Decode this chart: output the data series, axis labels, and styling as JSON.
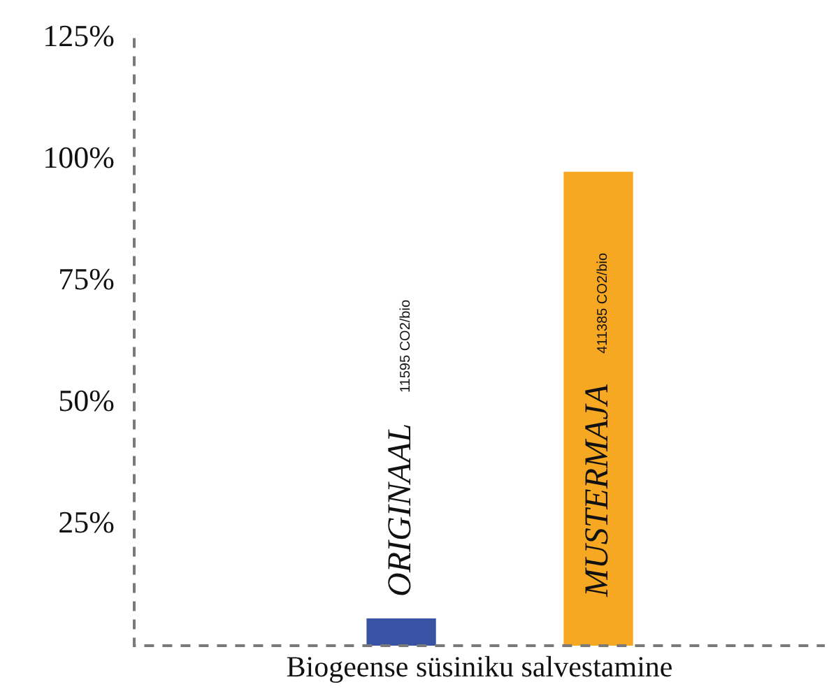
{
  "chart_data": {
    "type": "bar",
    "xlabel": "Biogeense süsiniku salvestamine",
    "categories": [
      "ORIGINAAL",
      "MUSTERMAJA"
    ],
    "values": [
      5.5,
      97.4
    ],
    "colors": [
      "#3953a4",
      "#f7a823"
    ],
    "annotations": [
      "11595 CO2/bio",
      "411385 CO2/bio"
    ],
    "ylim": [
      0,
      125
    ],
    "yticks": [
      {
        "value": 25,
        "label": "25%"
      },
      {
        "value": 50,
        "label": "50%"
      },
      {
        "value": 75,
        "label": "75%"
      },
      {
        "value": 100,
        "label": "100%"
      },
      {
        "value": 125,
        "label": "125%"
      }
    ],
    "grid": false,
    "legend": false,
    "tick_labels": "y"
  }
}
